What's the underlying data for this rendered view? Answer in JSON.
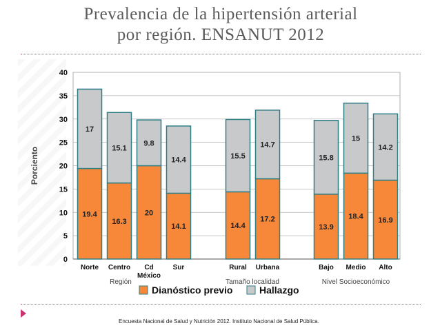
{
  "slide": {
    "title_line1": "Prevalencia de la hipertensión arterial",
    "title_line2": "por región. ENSANUT 2012",
    "source": "Encuesta Nacional de Salud y Nutrición 2012. Instituto Nacional de Salud Pública."
  },
  "colors": {
    "diagnostico": "#f7883a",
    "hallazgo": "#c7c9cb",
    "bar_stroke": "#2f7f86",
    "label_text": "#222222",
    "axis_text": "#111111",
    "group_text": "#444444",
    "title": "#5a5a5a",
    "accent": "#c8326e"
  },
  "chart_data": {
    "type": "bar",
    "stacked": true,
    "ylabel": "Porciento",
    "ylim": [
      0,
      40
    ],
    "yticks": [
      0,
      5,
      10,
      15,
      20,
      25,
      30,
      35,
      40
    ],
    "grid": true,
    "categories": [
      "Norte",
      "Centro",
      "Cd México",
      "Sur",
      "Rural",
      "Urbana",
      "Bajo",
      "Medio",
      "Alto"
    ],
    "groups": [
      {
        "label": "Región",
        "categories": [
          "Norte",
          "Centro",
          "Cd México",
          "Sur"
        ]
      },
      {
        "label": "Tamaño localidad",
        "categories": [
          "Rural",
          "Urbana"
        ]
      },
      {
        "label": "Nivel Socioeconómico",
        "categories": [
          "Bajo",
          "Medio",
          "Alto"
        ]
      }
    ],
    "series": [
      {
        "name": "Dianóstico previo",
        "values": [
          19.4,
          16.3,
          20,
          14.1,
          14.4,
          17.2,
          13.9,
          18.4,
          16.9
        ]
      },
      {
        "name": "Hallazgo",
        "values": [
          17,
          15.1,
          9.8,
          14.4,
          15.5,
          14.7,
          15.8,
          15,
          14.2
        ]
      }
    ],
    "legend_position": "bottom"
  }
}
